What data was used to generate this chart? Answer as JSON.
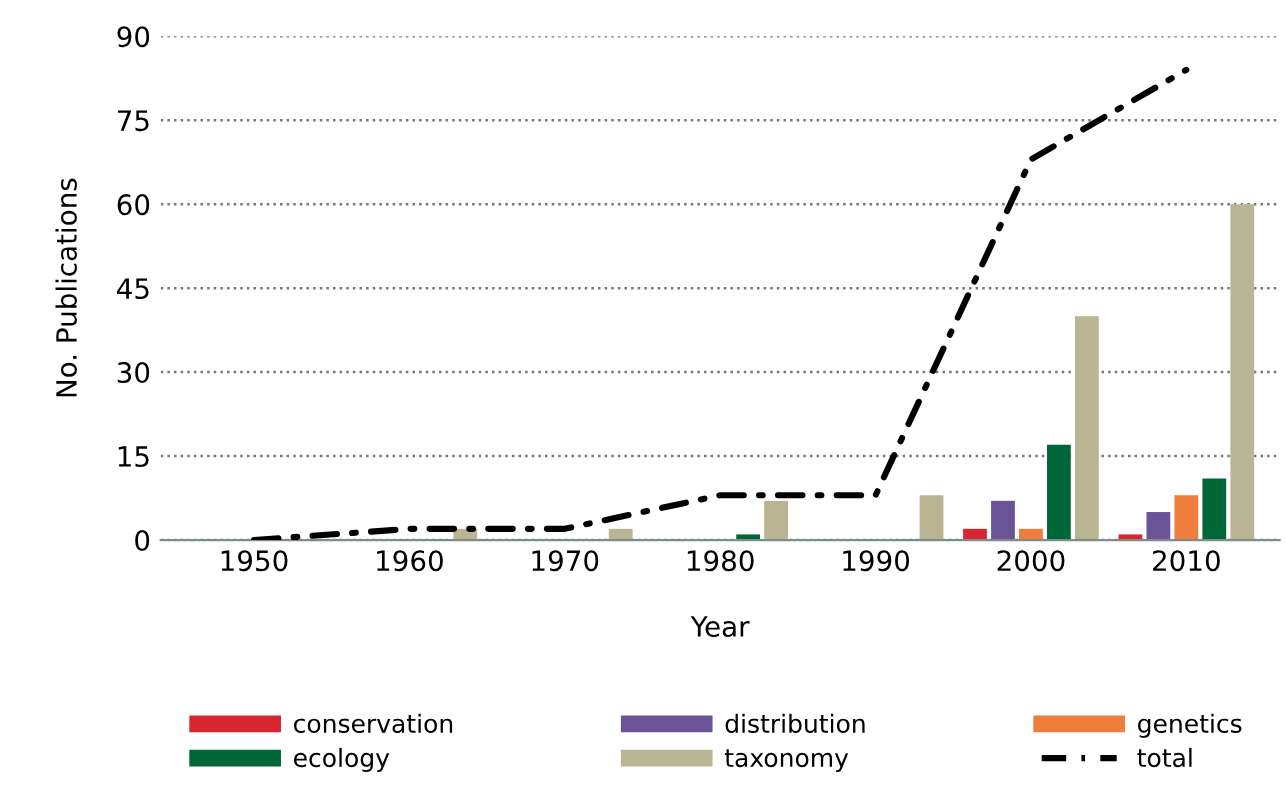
{
  "chart_data": {
    "type": "bar",
    "xlabel": "Year",
    "ylabel": "No. Publications",
    "categories": [
      "1950",
      "1960",
      "1970",
      "1980",
      "1990",
      "2000",
      "2010"
    ],
    "series": [
      {
        "name": "conservation",
        "color": "#d7262e",
        "values": [
          0,
          0,
          0,
          0,
          0,
          2,
          1
        ]
      },
      {
        "name": "distribution",
        "color": "#6a5396",
        "values": [
          0,
          0,
          0,
          0,
          0,
          7,
          5
        ]
      },
      {
        "name": "genetics",
        "color": "#ef7d3b",
        "values": [
          0,
          0,
          0,
          0,
          0,
          2,
          8
        ]
      },
      {
        "name": "ecology",
        "color": "#006838",
        "values": [
          0,
          0,
          0,
          1,
          0,
          17,
          11
        ]
      },
      {
        "name": "taxonomy",
        "color": "#b9b592",
        "values": [
          0,
          2,
          2,
          7,
          8,
          40,
          60
        ]
      },
      {
        "name": "total",
        "type": "line",
        "color": "#000000",
        "line_style": "dashdot",
        "values": [
          0,
          2,
          2,
          8,
          8,
          68,
          84
        ]
      }
    ],
    "ylim": [
      0,
      90
    ],
    "yticks": [
      0,
      15,
      30,
      45,
      60,
      75,
      90
    ],
    "grid": "y",
    "legend": "bottom"
  }
}
